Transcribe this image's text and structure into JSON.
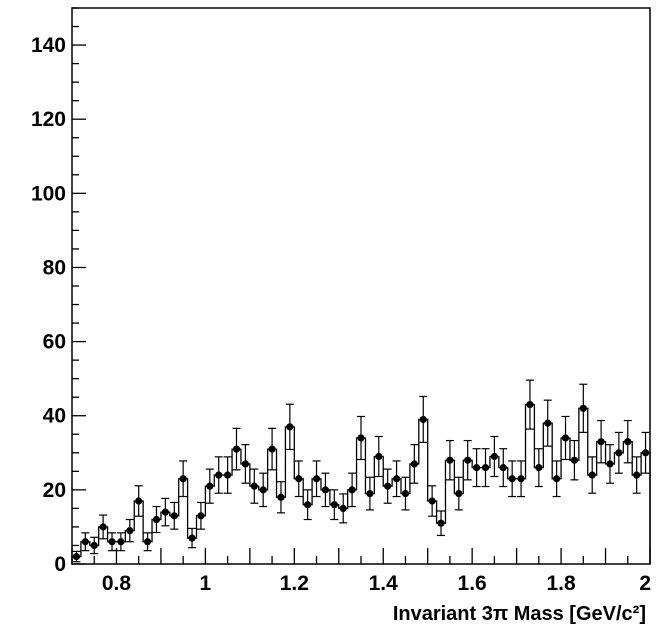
{
  "chart_data": {
    "type": "histogram",
    "xlabel": "Invariant 3π Mass  [GeV/c²]",
    "ylabel": "",
    "xlim": [
      0.7,
      2.0
    ],
    "ylim": [
      0,
      150
    ],
    "x_ticks": [
      {
        "value": 0.8,
        "label": "0.8"
      },
      {
        "value": 1.0,
        "label": "1"
      },
      {
        "value": 1.2,
        "label": "1.2"
      },
      {
        "value": 1.4,
        "label": "1.4"
      },
      {
        "value": 1.6,
        "label": "1.6"
      },
      {
        "value": 1.8,
        "label": "1.8"
      },
      {
        "value": 2.0,
        "label": "2"
      }
    ],
    "y_ticks": [
      {
        "value": 0,
        "label": "0"
      },
      {
        "value": 20,
        "label": "20"
      },
      {
        "value": 40,
        "label": "40"
      },
      {
        "value": 60,
        "label": "60"
      },
      {
        "value": 80,
        "label": "80"
      },
      {
        "value": 100,
        "label": "100"
      },
      {
        "value": 120,
        "label": "120"
      },
      {
        "value": 140,
        "label": "140"
      }
    ],
    "bin_width": 0.02,
    "x": [
      0.71,
      0.73,
      0.75,
      0.77,
      0.79,
      0.81,
      0.83,
      0.85,
      0.87,
      0.89,
      0.91,
      0.93,
      0.95,
      0.97,
      0.99,
      1.01,
      1.03,
      1.05,
      1.07,
      1.09,
      1.11,
      1.13,
      1.15,
      1.17,
      1.19,
      1.21,
      1.23,
      1.25,
      1.27,
      1.29,
      1.31,
      1.33,
      1.35,
      1.37,
      1.39,
      1.41,
      1.43,
      1.45,
      1.47,
      1.49,
      1.51,
      1.53,
      1.55,
      1.57,
      1.59,
      1.61,
      1.63,
      1.65,
      1.67,
      1.69,
      1.71,
      1.73,
      1.75,
      1.77,
      1.79,
      1.81,
      1.83,
      1.85,
      1.87,
      1.89,
      1.91,
      1.93,
      1.95,
      1.97,
      1.99
    ],
    "values": [
      2,
      6,
      5,
      10,
      6,
      6,
      9,
      17,
      6,
      12,
      14,
      13,
      23,
      7,
      13,
      21,
      24,
      24,
      31,
      27,
      21,
      20,
      31,
      18,
      37,
      23,
      16,
      23,
      20,
      16,
      15,
      20,
      34,
      19,
      29,
      21,
      23,
      19,
      27,
      39,
      17,
      11,
      28,
      19,
      28,
      26,
      26,
      29,
      26,
      23,
      23,
      43,
      26,
      38,
      23,
      34,
      28,
      42,
      24,
      33,
      27,
      30,
      33,
      24,
      30
    ],
    "errors": [
      1.4,
      2.4,
      2.2,
      3.2,
      2.4,
      2.4,
      3,
      4.1,
      2.4,
      3.5,
      3.7,
      3.6,
      4.8,
      2.6,
      3.6,
      4.6,
      4.9,
      4.9,
      5.6,
      5.2,
      4.6,
      4.5,
      5.6,
      4.2,
      6.1,
      4.8,
      4,
      4.8,
      4.5,
      4,
      3.9,
      4.5,
      5.8,
      4.4,
      5.4,
      4.6,
      4.8,
      4.4,
      5.2,
      6.2,
      4.1,
      3.3,
      5.3,
      4.4,
      5.3,
      5.1,
      5.1,
      5.4,
      5.1,
      4.8,
      4.8,
      6.6,
      5.1,
      6.2,
      4.8,
      5.8,
      5.3,
      6.5,
      4.9,
      5.7,
      5.2,
      5.5,
      5.7,
      4.9,
      5.5
    ],
    "grid": false,
    "legend": "none"
  }
}
